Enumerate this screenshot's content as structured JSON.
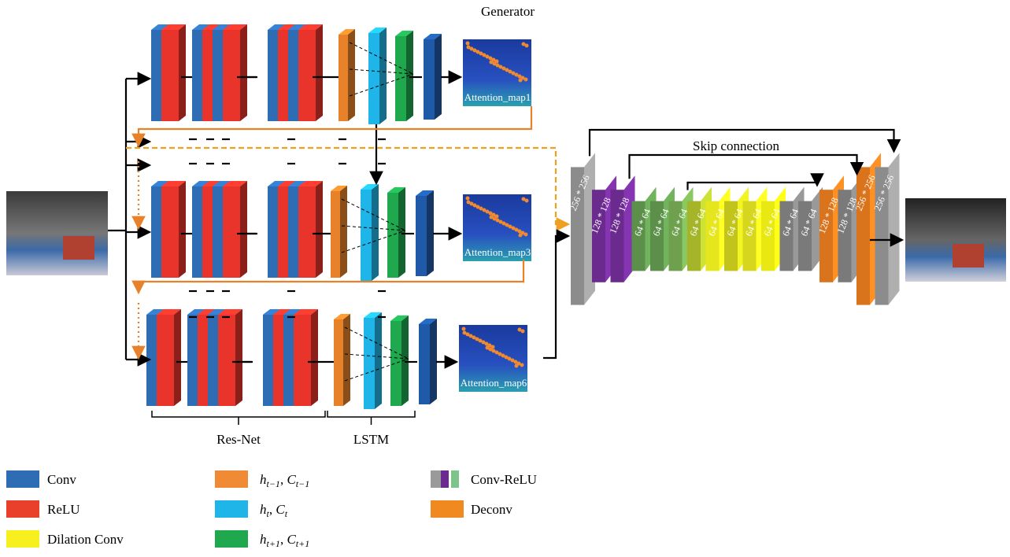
{
  "header": {
    "title": "Generator"
  },
  "attention_maps": [
    "Attention_map1",
    "Attention_map3",
    "Attention_map6"
  ],
  "groups": [
    "Res-Net",
    "LSTM"
  ],
  "skip_label": "Skip connection",
  "decoder_blocks": [
    {
      "label": "256 * 256",
      "color": "#8c8c8c"
    },
    {
      "label": "128 * 128",
      "color": "#6a2a8e"
    },
    {
      "label": "128 * 128",
      "color": "#6a2a8e"
    },
    {
      "label": "64 * 64",
      "color": "#5b8f4a"
    },
    {
      "label": "64 * 64",
      "color": "#5b8f4a"
    },
    {
      "label": "64 * 64",
      "color": "#6ea04e"
    },
    {
      "label": "64 * 64",
      "color": "#a4b52a"
    },
    {
      "label": "64 * 64",
      "color": "#e6e61e"
    },
    {
      "label": "64 * 64",
      "color": "#c2c41c"
    },
    {
      "label": "64 * 64",
      "color": "#d6d61e"
    },
    {
      "label": "64 * 64",
      "color": "#e8e812"
    },
    {
      "label": "64 * 64",
      "color": "#7a7a7a"
    },
    {
      "label": "64 * 64",
      "color": "#7a7a7a"
    },
    {
      "label": "128 * 128",
      "color": "#d9731c"
    },
    {
      "label": "128 * 128",
      "color": "#7a7a7a"
    },
    {
      "label": "256 * 256",
      "color": "#d9731c"
    },
    {
      "label": "256 * 256",
      "color": "#8c8c8c"
    }
  ],
  "legend": [
    {
      "label": "Conv",
      "color": "#2e6db4"
    },
    {
      "label": "ReLU",
      "color": "#e8402a"
    },
    {
      "label": "Dilation Conv",
      "color": "#f7f01e"
    },
    {
      "var1": "h",
      "sub1": "t−1",
      "sep": ", ",
      "var2": "C",
      "sub2": "t−1",
      "color": "#f08a35"
    },
    {
      "var1": "h",
      "sub1": "t",
      "sep": ", ",
      "var2": "C",
      "sub2": "t",
      "color": "#1fb5e8"
    },
    {
      "var1": "h",
      "sub1": "t+1",
      "sep": ", ",
      "var2": "C",
      "sub2": "t+1",
      "color": "#1fa84e"
    },
    {
      "label": "Conv-ReLU",
      "colors": [
        "#9a9a9a",
        "#6a2a8e",
        "#7cc48a"
      ]
    },
    {
      "label": "Deconv",
      "color": "#f08a20"
    }
  ]
}
